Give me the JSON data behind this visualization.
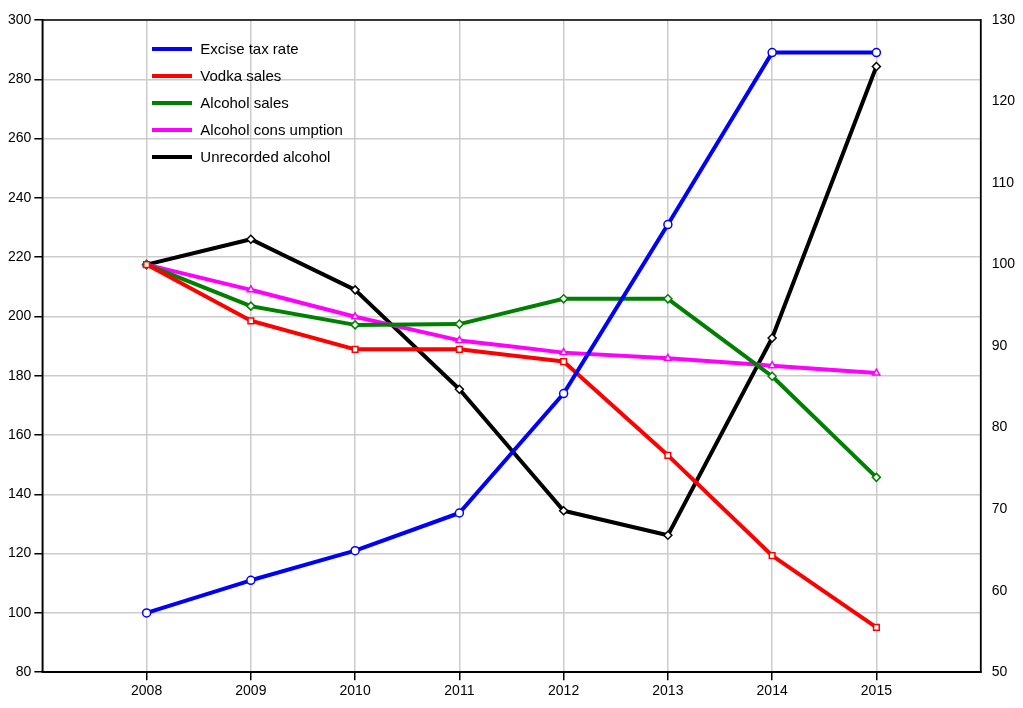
{
  "chart_data": {
    "type": "line",
    "x": [
      2008,
      2009,
      2010,
      2011,
      2012,
      2013,
      2014,
      2015
    ],
    "xlim": [
      2007,
      2016
    ],
    "xticks": [
      2008,
      2009,
      2010,
      2011,
      2012,
      2013,
      2014,
      2015
    ],
    "ylim": [
      80,
      300
    ],
    "yticks": [
      80,
      100,
      120,
      140,
      160,
      180,
      200,
      220,
      240,
      260,
      280,
      300
    ],
    "y2lim": [
      50,
      130
    ],
    "y2ticks": [
      50,
      60,
      70,
      80,
      90,
      100,
      110,
      120,
      130
    ],
    "grid": true,
    "legend": "top left",
    "line_style": "solid",
    "series": [
      {
        "name": "Excise tax rate",
        "color": "#0000ff",
        "marker": "circle",
        "values": [
          100,
          111,
          121,
          133.7,
          174,
          231,
          289,
          289
        ]
      },
      {
        "name": "Vodka sales",
        "color": "#ff0000",
        "marker": "square",
        "axis": "y2",
        "values": [
          100,
          93.1,
          89.6,
          89.6,
          88.1,
          76.6,
          64.3,
          55.5
        ]
      },
      {
        "name": "Alcohol sales",
        "color": "#008000",
        "marker": "diamond",
        "axis": "y2",
        "values": [
          100,
          94.9,
          92.6,
          92.7,
          95.8,
          95.8,
          86.3,
          73.9
        ]
      },
      {
        "name": "Alcohol cons umption",
        "color": "#ff00ff",
        "marker": "triangle",
        "axis": "y2",
        "values": [
          100,
          96.9,
          93.6,
          90.7,
          89.2,
          88.5,
          87.6,
          86.7
        ]
      },
      {
        "name": "Unrecorded alcohol",
        "color": "#000000",
        "marker": "diamond",
        "axis": "y2",
        "values": [
          100,
          103.1,
          96.9,
          84.7,
          69.8,
          66.8,
          91,
          124.3
        ]
      }
    ]
  }
}
